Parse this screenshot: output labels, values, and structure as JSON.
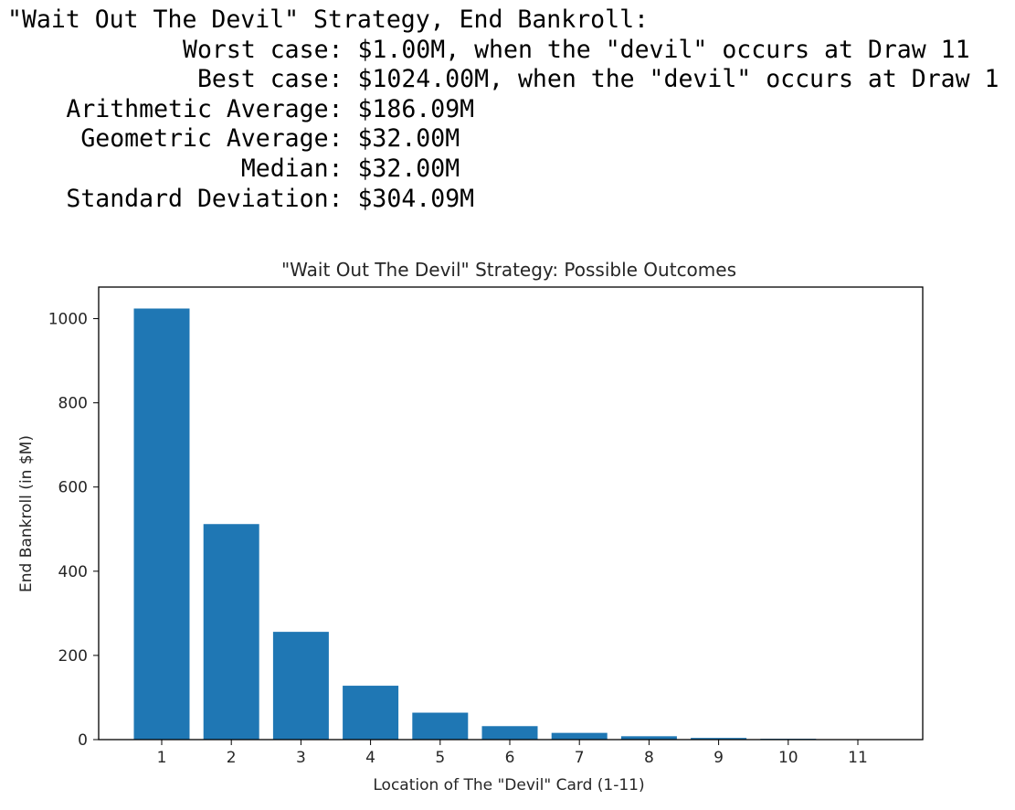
{
  "output": {
    "heading": "\"Wait Out The Devil\" Strategy, End Bankroll:",
    "stats": [
      {
        "label": "Worst case:",
        "value": "$1.00M, when the \"devil\" occurs at Draw 11"
      },
      {
        "label": "Best case:",
        "value": "$1024.00M, when the \"devil\" occurs at Draw 1"
      },
      {
        "label": "Arithmetic Average:",
        "value": "$186.09M"
      },
      {
        "label": "Geometric Average:",
        "value": "$32.00M"
      },
      {
        "label": "Median:",
        "value": "$32.00M"
      },
      {
        "label": "Standard Deviation:",
        "value": "$304.09M"
      }
    ]
  },
  "chart_data": {
    "type": "bar",
    "title": "\"Wait Out The Devil\" Strategy: Possible Outcomes",
    "xlabel": "Location of The \"Devil\" Card (1-11)",
    "ylabel": "End Bankroll (in $M)",
    "categories": [
      "1",
      "2",
      "3",
      "4",
      "5",
      "6",
      "7",
      "8",
      "9",
      "10",
      "11"
    ],
    "values": [
      1024,
      512,
      256,
      128,
      64,
      32,
      16,
      8,
      4,
      2,
      1
    ],
    "ylim": [
      0,
      1075
    ],
    "yticks": [
      0,
      200,
      400,
      600,
      800,
      1000
    ],
    "bar_color": "#1f77b4",
    "grid": false,
    "legend": "none"
  }
}
